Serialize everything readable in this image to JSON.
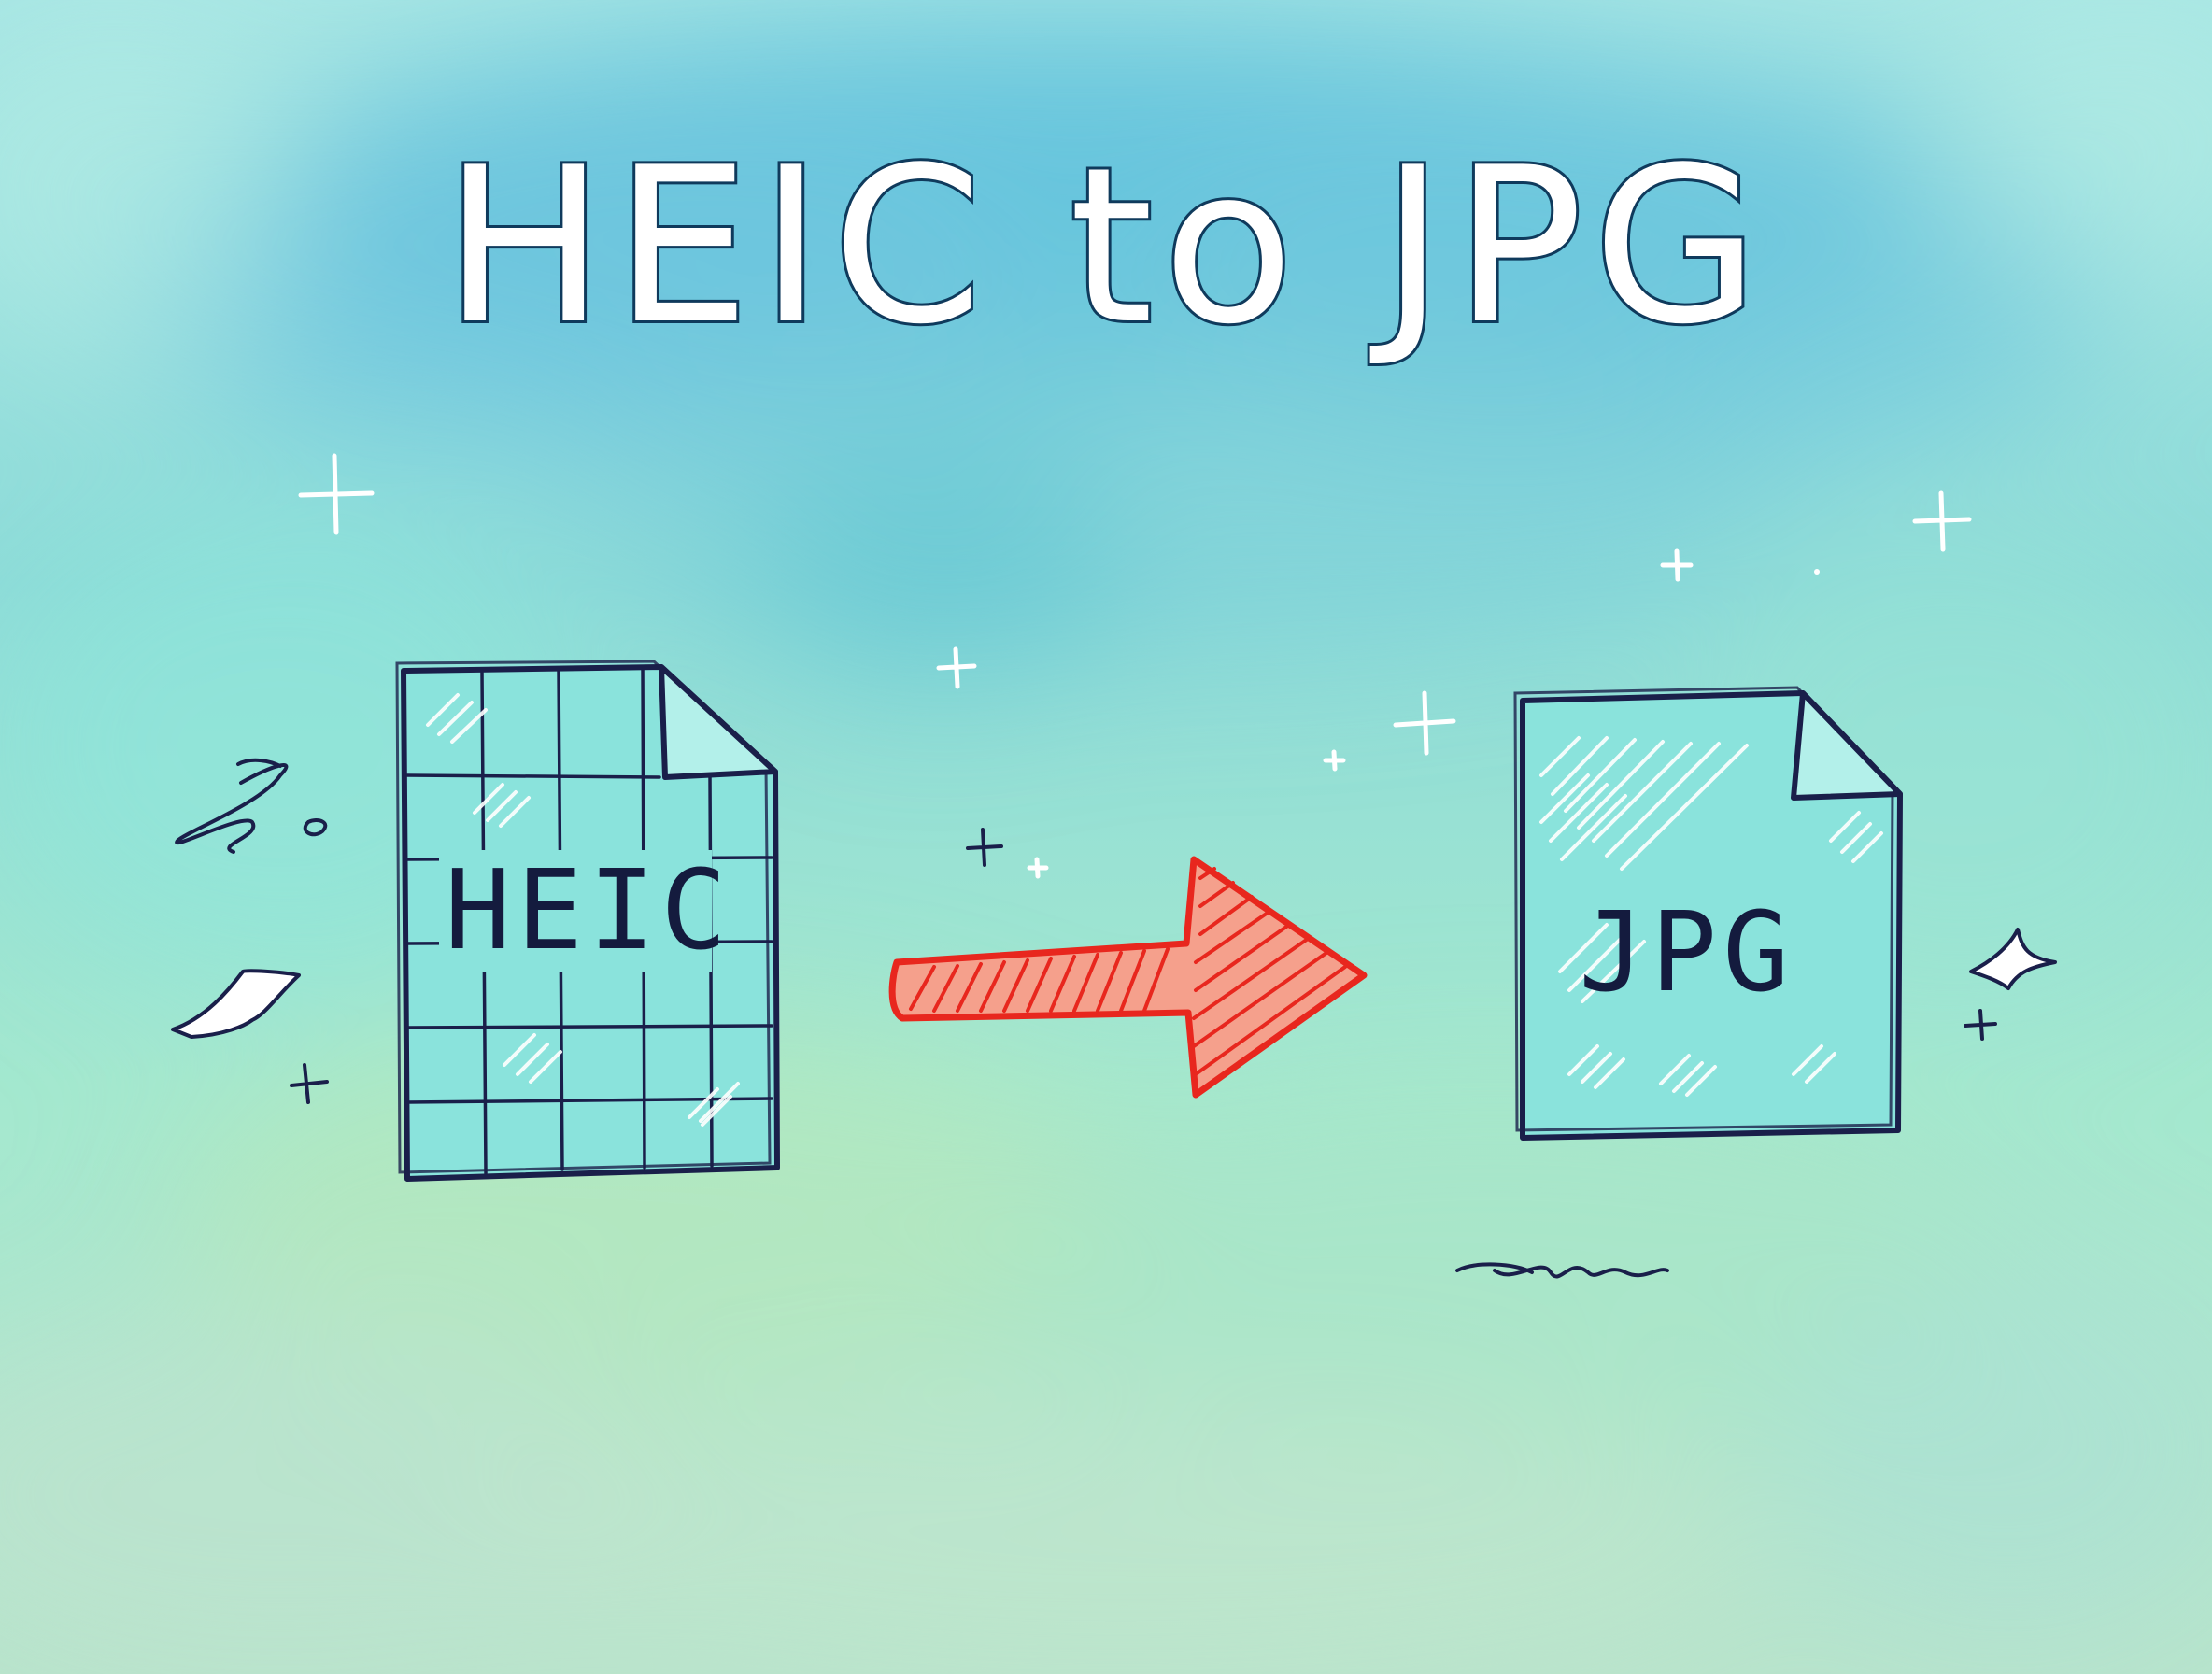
{
  "title": "HEIC to JPG",
  "source_file": {
    "label": "HEIC",
    "icon": "grid-document-icon"
  },
  "target_file": {
    "label": "JPG",
    "icon": "glossy-document-icon"
  },
  "arrow": {
    "icon": "right-arrow-icon"
  },
  "colors": {
    "background_top": "#6fc7dc",
    "background_bottom": "#b7e8c8",
    "document_fill": "#8fe5dd",
    "outline": "#1a1f4a",
    "arrow": "#ef3b2f",
    "title_text": "#ffffff",
    "sparkle": "#ffffff"
  }
}
